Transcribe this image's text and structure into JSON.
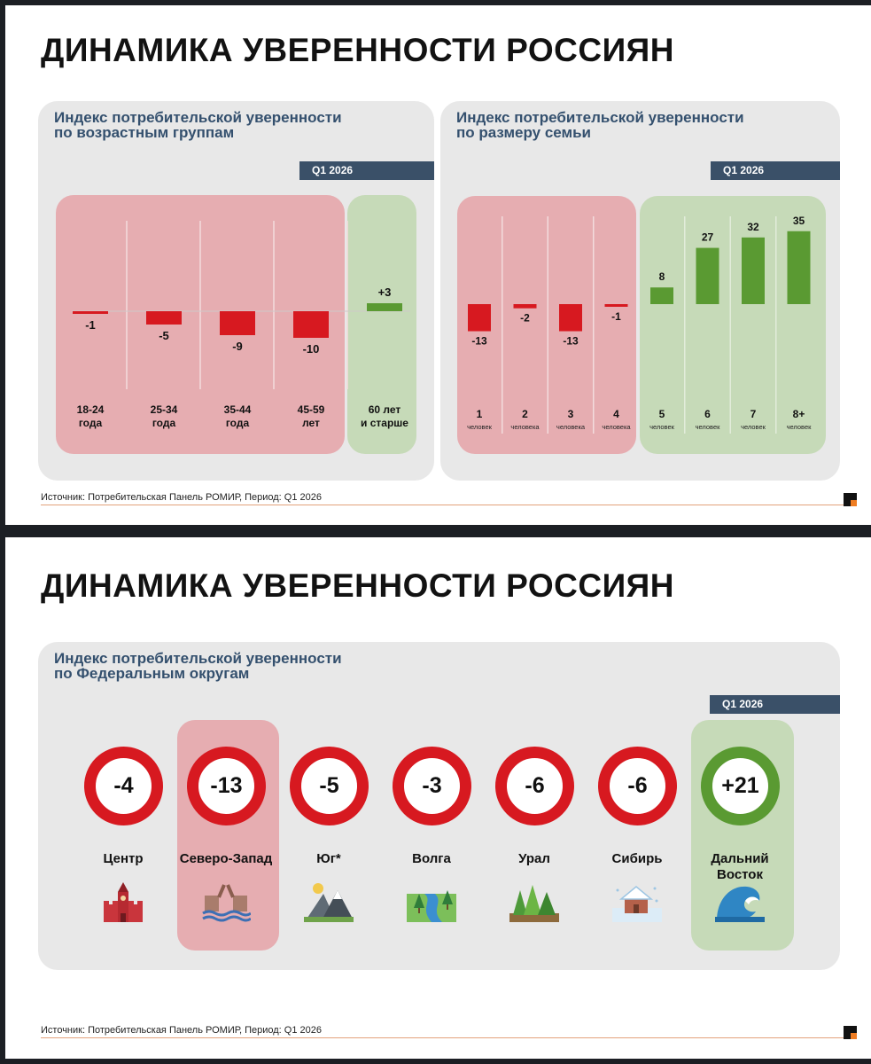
{
  "slides": [
    {
      "title": "ДИНАМИКА УВЕРЕННОСТИ РОССИЯН",
      "footer": "Источник: Потребительская Панель РОМИР, Период: Q1 2026"
    },
    {
      "title": "ДИНАМИКА УВЕРЕННОСТИ РОССИЯН",
      "footer": "Источник: Потребительская Панель РОМИР, Период: Q1 2026"
    }
  ],
  "colors": {
    "negative": "#d71920",
    "positive": "#5a9a32",
    "negative_zone": "#e6adb1",
    "positive_zone": "#c6dab8",
    "panel": "#e8e8e8",
    "badge": "#3a5068",
    "title_blue": "#34506e"
  },
  "chart_data": [
    {
      "type": "bar",
      "title": "Индекс потребительской уверенности\nпо возрастным группам",
      "period": "Q1 2026",
      "categories": [
        "18-24\nгода",
        "25-34\nгода",
        "35-44\nгода",
        "45-59\nлет",
        "60 лет\nи старше"
      ],
      "values": [
        -1,
        -5,
        -9,
        -10,
        3
      ],
      "value_labels": [
        "-1",
        "-5",
        "-9",
        "-10",
        "+3"
      ],
      "ylim": [
        -12,
        12
      ]
    },
    {
      "type": "bar",
      "title": "Индекс потребительской уверенности\nпо размеру семьи",
      "period": "Q1 2026",
      "categories": [
        "1",
        "2",
        "3",
        "4",
        "5",
        "6",
        "7",
        "8+"
      ],
      "category_sublabels": [
        "человек",
        "человека",
        "человека",
        "человека",
        "человек",
        "человек",
        "человек",
        "человек"
      ],
      "values": [
        -13,
        -2,
        -13,
        -1,
        8,
        27,
        32,
        35
      ],
      "value_labels": [
        "-13",
        "-2",
        "-13",
        "-1",
        "8",
        "27",
        "32",
        "35"
      ],
      "ylim": [
        -20,
        40
      ]
    },
    {
      "type": "table",
      "title": "Индекс потребительской уверенности\nпо Федеральным округам",
      "period": "Q1 2026",
      "categories": [
        "Центр",
        "Северо-Запад",
        "Юг*",
        "Волга",
        "Урал",
        "Сибирь",
        "Дальний\nВосток"
      ],
      "values": [
        -4,
        -13,
        -5,
        -3,
        -6,
        -6,
        21
      ],
      "value_labels": [
        "-4",
        "-13",
        "-5",
        "-3",
        "-6",
        "-6",
        "+21"
      ],
      "icons": [
        "kremlin-icon",
        "drawbridge-icon",
        "mountains-icon",
        "river-icon",
        "forest-icon",
        "snow-house-icon",
        "wave-icon"
      ]
    }
  ]
}
